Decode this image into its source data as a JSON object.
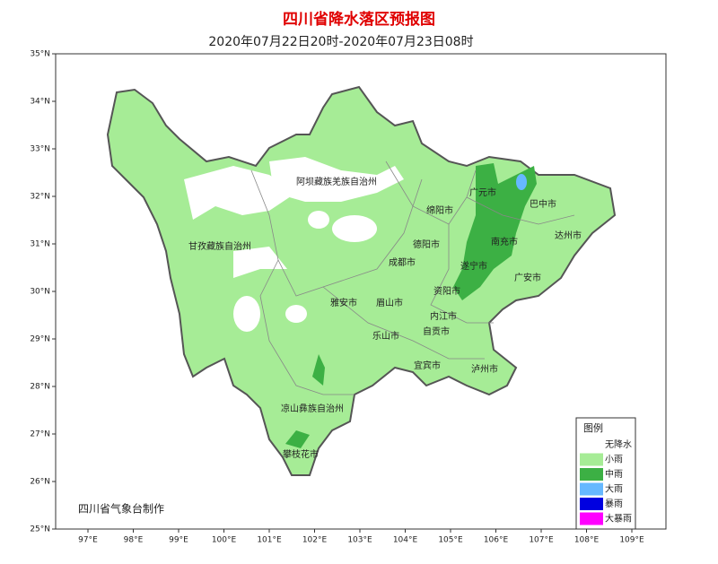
{
  "header": {
    "title": "四川省降水落区预报图",
    "subtitle": "2020年07月22日20时-2020年07月23日08时"
  },
  "map": {
    "lat_ticks": [
      {
        "value": 35,
        "label": "35°N"
      },
      {
        "value": 34,
        "label": "34°N"
      },
      {
        "value": 33,
        "label": "33°N"
      },
      {
        "value": 32,
        "label": "32°N"
      },
      {
        "value": 31,
        "label": "31°N"
      },
      {
        "value": 30,
        "label": "30°N"
      },
      {
        "value": 29,
        "label": "29°N"
      },
      {
        "value": 28,
        "label": "28°N"
      },
      {
        "value": 27,
        "label": "27°N"
      },
      {
        "value": 26,
        "label": "26°N"
      },
      {
        "value": 25,
        "label": "25°N"
      }
    ],
    "lon_ticks": [
      {
        "value": 97,
        "label": "97°E"
      },
      {
        "value": 98,
        "label": "98°E"
      },
      {
        "value": 99,
        "label": "99°E"
      },
      {
        "value": 100,
        "label": "100°E"
      },
      {
        "value": 101,
        "label": "101°E"
      },
      {
        "value": 102,
        "label": "102°E"
      },
      {
        "value": 103,
        "label": "103°E"
      },
      {
        "value": 104,
        "label": "104°E"
      },
      {
        "value": 105,
        "label": "105°E"
      },
      {
        "value": 106,
        "label": "106°E"
      },
      {
        "value": 107,
        "label": "107°E"
      },
      {
        "value": 108,
        "label": "108°E"
      },
      {
        "value": 109,
        "label": "109°E"
      }
    ],
    "regions": [
      "阿坝藏族羌族自治州",
      "甘孜藏族自治州",
      "广元市",
      "巴中市",
      "绵阳市",
      "达州市",
      "南充市",
      "德阳市",
      "成都市",
      "遂宁市",
      "广安市",
      "资阳市",
      "雅安市",
      "眉山市",
      "内江市",
      "乐山市",
      "自贡市",
      "宜宾市",
      "泸州市",
      "凉山彝族自治州",
      "攀枝花市"
    ],
    "credit": "四川省气象台制作"
  },
  "legend": {
    "title": "图例",
    "items": [
      {
        "label": "无降水",
        "color": "#ffffff"
      },
      {
        "label": "小雨",
        "color": "#a6ec96"
      },
      {
        "label": "中雨",
        "color": "#3cb044"
      },
      {
        "label": "大雨",
        "color": "#66b8ff"
      },
      {
        "label": "暴雨",
        "color": "#0000e0"
      },
      {
        "label": "大暴雨",
        "color": "#ff00ff"
      }
    ]
  }
}
